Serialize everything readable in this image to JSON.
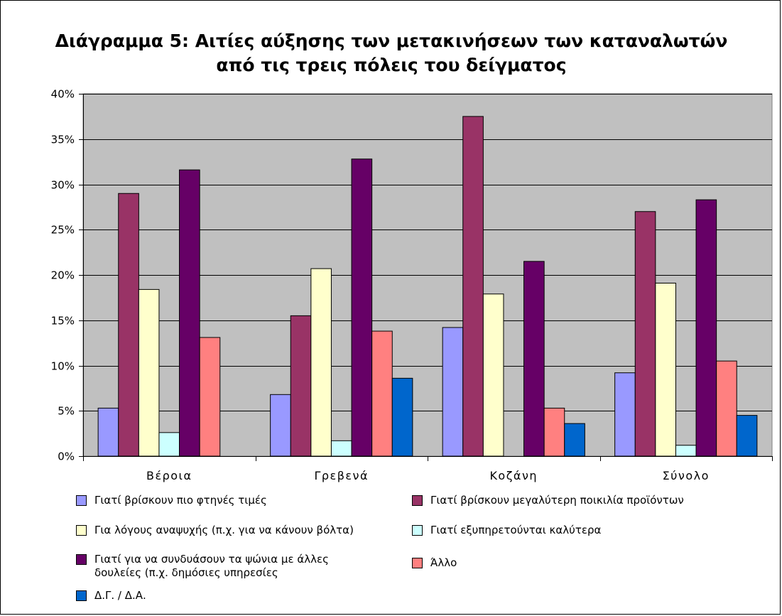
{
  "chart_data": {
    "type": "bar",
    "title": "Διάγραμμα 5: Αιτίες αύξησης των μετακινήσεων των καταναλωτών\nαπό τις τρεις πόλεις του δείγματος",
    "xlabel": "",
    "ylabel": "",
    "categories": [
      "Βέροια",
      "Γρεβενά",
      "Κοζάνη",
      "Σύνολο"
    ],
    "ylim": [
      0,
      0.4
    ],
    "y_ticks": [
      {
        "value": 0,
        "label": "0%"
      },
      {
        "value": 0.05,
        "label": "5%"
      },
      {
        "value": 0.1,
        "label": "10%"
      },
      {
        "value": 0.15,
        "label": "15%"
      },
      {
        "value": 0.2,
        "label": "20%"
      },
      {
        "value": 0.25,
        "label": "25%"
      },
      {
        "value": 0.3,
        "label": "30%"
      },
      {
        "value": 0.35,
        "label": "35%"
      },
      {
        "value": 0.4,
        "label": "40%"
      }
    ],
    "grid": true,
    "legend_position": "bottom",
    "plot_background": "#c0c0c0",
    "series": [
      {
        "name": "Γιατί βρίσκουν πιο φτηνές τιμές",
        "color": "#9999ff",
        "values": [
          0.053,
          0.068,
          0.142,
          0.092
        ]
      },
      {
        "name": "Γιατί βρίσκουν μεγαλύτερη ποικιλία προϊόντων",
        "color": "#993366",
        "values": [
          0.29,
          0.155,
          0.375,
          0.27
        ]
      },
      {
        "name": "Για λόγους αναψυχής (π.χ. για να κάνουν βόλτα)",
        "color": "#ffffcc",
        "values": [
          0.184,
          0.207,
          0.179,
          0.191
        ]
      },
      {
        "name": "Γιατί εξυπηρετούνται καλύτερα",
        "color": "#ccffff",
        "values": [
          0.026,
          0.017,
          null,
          0.012
        ]
      },
      {
        "name": "Γιατί για να συνδυάσουν τα ψώνια με άλλες\nδουλείες (π.χ. δημόσιες υπηρεσίες",
        "color": "#660066",
        "values": [
          0.316,
          0.328,
          0.215,
          0.283
        ]
      },
      {
        "name": "Άλλο",
        "color": "#ff8080",
        "values": [
          0.131,
          0.138,
          0.053,
          0.105
        ]
      },
      {
        "name": "Δ.Γ. / Δ.Α.",
        "color": "#0066cc",
        "values": [
          null,
          0.086,
          0.036,
          0.045
        ]
      }
    ]
  }
}
